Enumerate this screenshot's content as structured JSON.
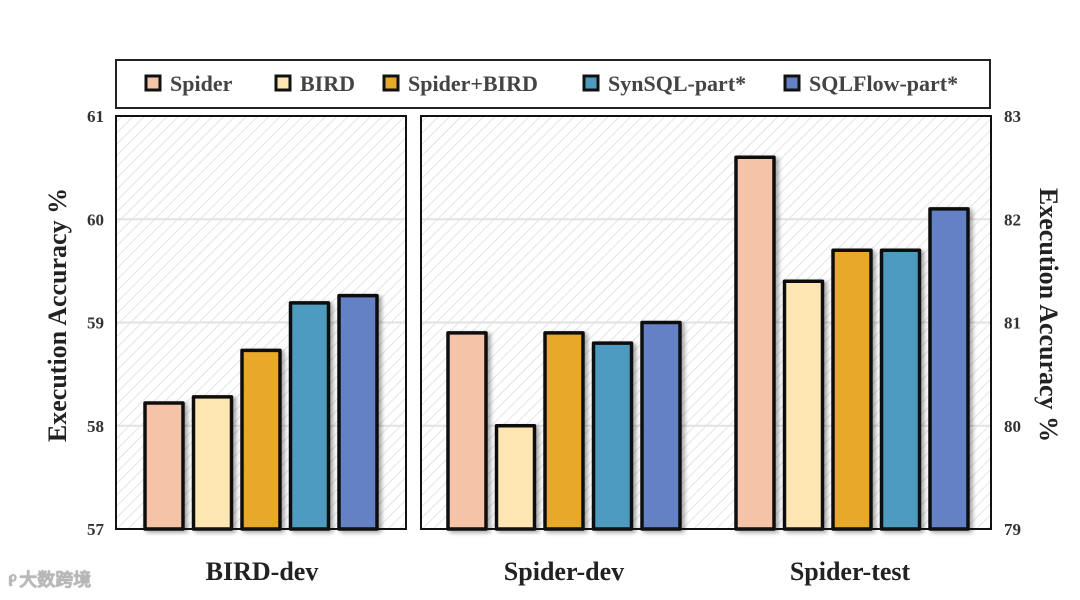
{
  "chart_data": {
    "type": "bar",
    "legend": [
      "Spider",
      "BIRD",
      "Spider+BIRD",
      "SynSQL-part*",
      "SQLFlow-part*"
    ],
    "legend_position": "top",
    "colors": [
      "#F4C3A8",
      "#FEE6B2",
      "#E8A82A",
      "#4E9BBF",
      "#6381C4"
    ],
    "panels": [
      {
        "categories": [
          "BIRD-dev"
        ],
        "ylabel": "Execution Accuracy  %",
        "ylim": [
          57,
          61
        ],
        "yticks": [
          "57",
          "58",
          "59",
          "60",
          "61"
        ],
        "axis": "left",
        "series_values": [
          [
            58.22,
            58.28,
            58.73,
            59.19,
            59.26
          ]
        ]
      },
      {
        "categories": [
          "Spider-dev",
          "Spider-test"
        ],
        "ylabel": "Execution Accuracy  %",
        "ylim": [
          79,
          83
        ],
        "yticks": [
          "79",
          "80",
          "81",
          "82",
          "83"
        ],
        "axis": "right",
        "series_values": [
          [
            80.9,
            80.0,
            80.9,
            80.8,
            81.0
          ],
          [
            82.6,
            81.4,
            81.7,
            81.7,
            82.1
          ]
        ]
      }
    ],
    "grid": true
  },
  "watermark": "大数跨境"
}
